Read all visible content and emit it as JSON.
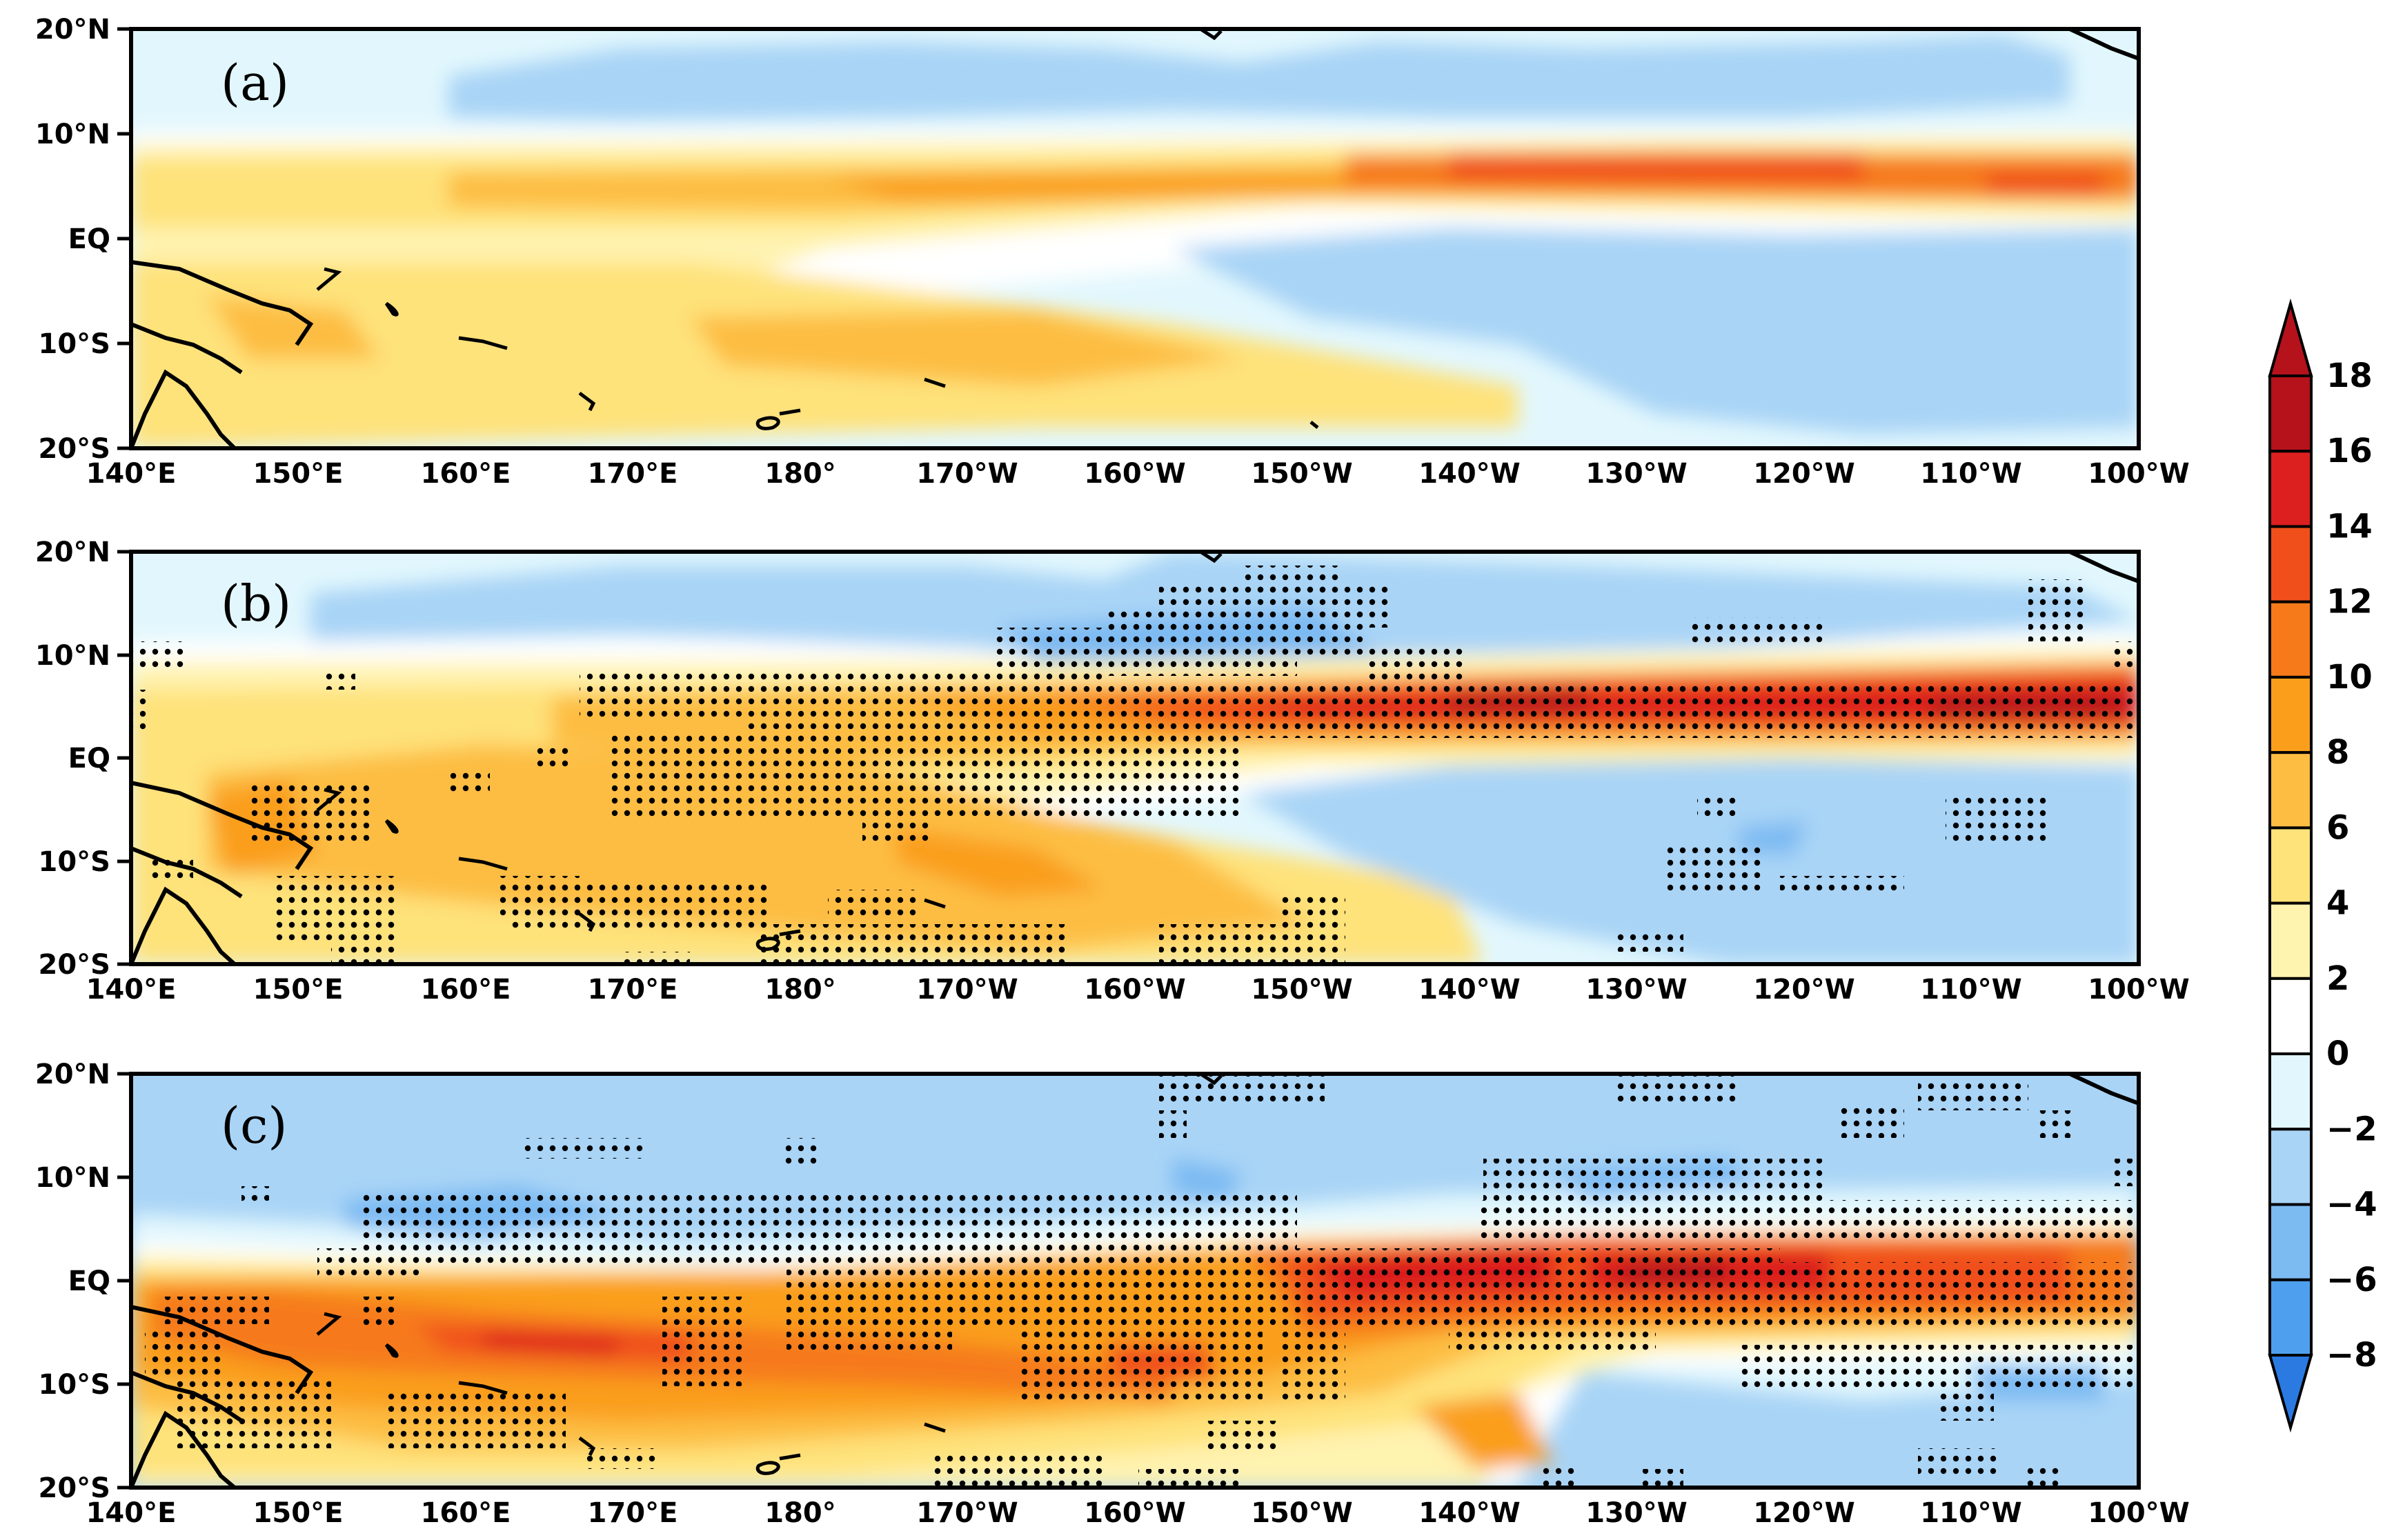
{
  "figure": {
    "panels": [
      {
        "label": "(a)"
      },
      {
        "label": "(b)"
      },
      {
        "label": "(c)"
      }
    ],
    "lat_ticks": [
      "20°N",
      "10°N",
      "EQ",
      "10°S",
      "20°S"
    ],
    "lon_ticks": [
      "140°E",
      "150°E",
      "160°E",
      "170°E",
      "180°",
      "170°W",
      "160°W",
      "150°W",
      "140°W",
      "130°W",
      "120°W",
      "110°W",
      "100°W"
    ]
  },
  "colorbar": {
    "levels": [
      "18",
      "16",
      "14",
      "12",
      "10",
      "8",
      "6",
      "4",
      "2",
      "0",
      "−2",
      "−4",
      "−6",
      "−8"
    ],
    "colors": {
      "over": "#b5121b",
      "bins": [
        "#b5121b",
        "#dc1f1f",
        "#f04f1b",
        "#f67a1a",
        "#fa9e1c",
        "#fdbd42",
        "#fee27a",
        "#fff3b0",
        "#ffffff",
        "#e2f7fd",
        "#a9d4f6",
        "#7cbaf2",
        "#4ea0ee"
      ],
      "under": "#2a7ae2"
    }
  },
  "colors": {
    "land_outline": "#000000",
    "stipple": "#000000",
    "frame": "#000000"
  }
}
